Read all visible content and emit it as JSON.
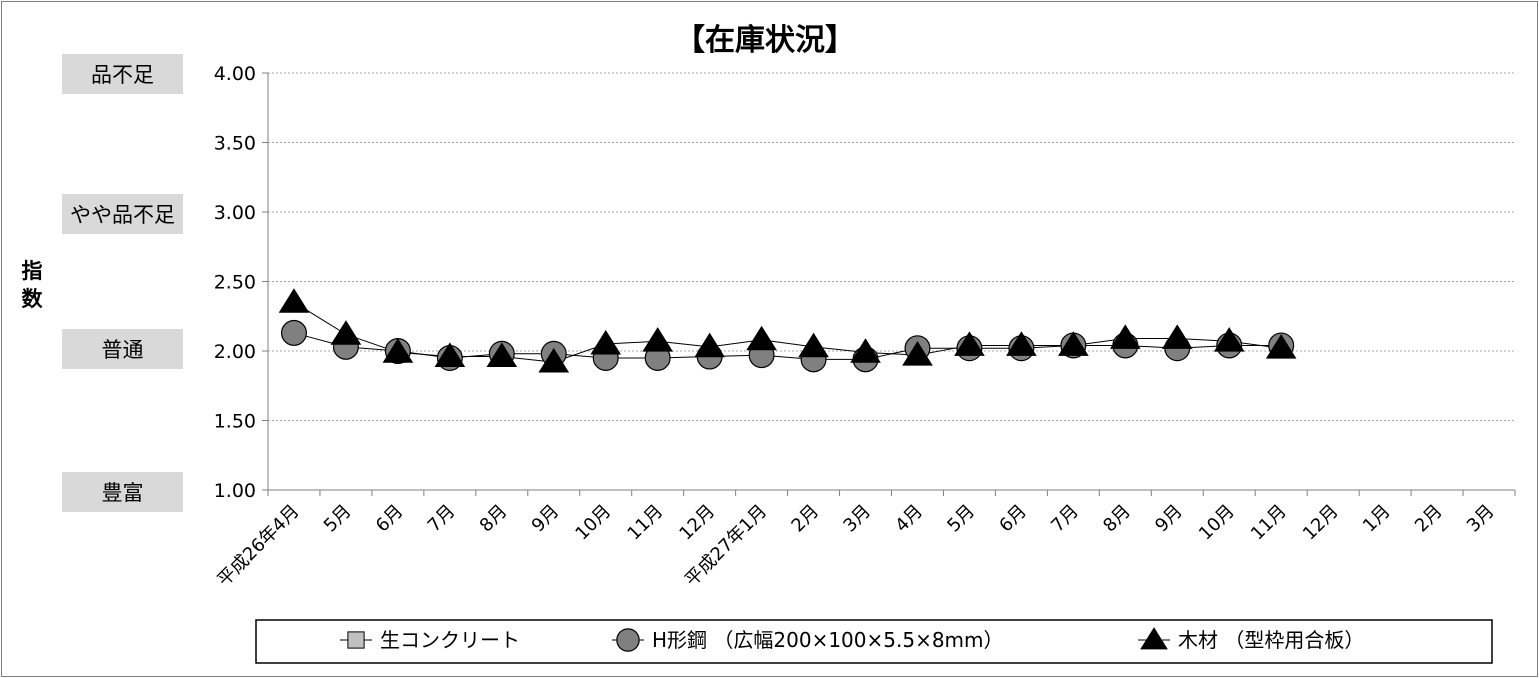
{
  "chart_data": {
    "type": "line",
    "title": "【在庫状況】",
    "ylabel": "指数",
    "ylim": [
      1.0,
      4.0
    ],
    "yticks": [
      "4.00",
      "3.50",
      "3.00",
      "2.50",
      "2.00",
      "1.50",
      "1.00"
    ],
    "grid": true,
    "band_labels": [
      {
        "value": 4.0,
        "label": "品不足"
      },
      {
        "value": 3.0,
        "label": "やや品不足"
      },
      {
        "value": 2.0,
        "label": "普通"
      },
      {
        "value": 1.0,
        "label": "豊富"
      }
    ],
    "categories": [
      "平成26年4月",
      "5月",
      "6月",
      "7月",
      "8月",
      "9月",
      "10月",
      "11月",
      "12月",
      "平成27年1月",
      "2月",
      "3月",
      "4月",
      "5月",
      "6月",
      "7月",
      "8月",
      "9月",
      "10月",
      "11月",
      "12月",
      "1月",
      "2月",
      "3月"
    ],
    "series": [
      {
        "name": "生コンクリート",
        "marker": "square",
        "color": "#c0c0c0",
        "values": [
          null,
          null,
          null,
          null,
          null,
          null,
          null,
          null,
          null,
          null,
          null,
          null,
          null,
          null,
          null,
          null,
          null,
          null,
          null,
          null,
          null,
          null,
          null,
          null
        ]
      },
      {
        "name": "H形鋼 （広幅200×100×5.5×8mm）",
        "marker": "circle",
        "color": "#808080",
        "values": [
          2.13,
          2.03,
          2.0,
          1.95,
          1.98,
          1.98,
          1.95,
          1.95,
          1.96,
          1.97,
          1.94,
          1.94,
          2.02,
          2.02,
          2.02,
          2.04,
          2.04,
          2.02,
          2.04,
          2.04,
          null,
          null,
          null,
          null
        ]
      },
      {
        "name": "木材 （型枠用合板）",
        "marker": "triangle",
        "color": "#000000",
        "values": [
          2.35,
          2.12,
          1.99,
          1.96,
          1.96,
          1.92,
          2.05,
          2.07,
          2.03,
          2.08,
          2.03,
          1.99,
          1.97,
          2.04,
          2.04,
          2.04,
          2.09,
          2.09,
          2.07,
          2.02,
          null,
          null,
          null,
          null
        ]
      }
    ],
    "legend_position": "bottom"
  }
}
